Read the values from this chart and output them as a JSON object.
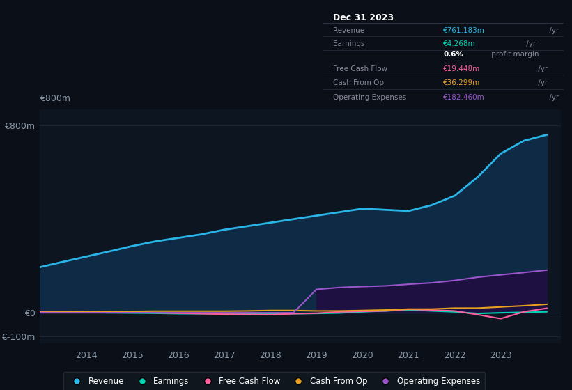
{
  "background_color": "#0b0f17",
  "plot_bg_color": "#0d1520",
  "grid_color": "#1a2535",
  "years": [
    2013.0,
    2013.5,
    2014.0,
    2014.5,
    2015.0,
    2015.5,
    2016.0,
    2016.5,
    2017.0,
    2017.5,
    2018.0,
    2018.5,
    2019.0,
    2019.5,
    2020.0,
    2020.5,
    2021.0,
    2021.5,
    2022.0,
    2022.5,
    2023.0,
    2023.5,
    2024.0
  ],
  "revenue": [
    195,
    218,
    240,
    262,
    285,
    305,
    320,
    335,
    355,
    370,
    385,
    400,
    415,
    430,
    445,
    440,
    435,
    460,
    500,
    580,
    680,
    735,
    761
  ],
  "earnings": [
    2,
    1,
    1,
    0,
    -1,
    -2,
    -4,
    -4,
    -4,
    -5,
    -5,
    -4,
    -3,
    -1,
    4,
    8,
    12,
    8,
    4,
    -3,
    0,
    2,
    4.268
  ],
  "free_cash_flow": [
    3,
    3,
    2,
    1,
    1,
    0,
    -2,
    -4,
    -6,
    -7,
    -8,
    -4,
    -2,
    4,
    6,
    8,
    15,
    12,
    8,
    -8,
    -25,
    4,
    19.448
  ],
  "cash_from_op": [
    2,
    3,
    4,
    5,
    6,
    7,
    7,
    7,
    7,
    8,
    10,
    10,
    8,
    8,
    10,
    12,
    16,
    16,
    20,
    20,
    25,
    30,
    36.299
  ],
  "operating_expenses": [
    0,
    0,
    0,
    0,
    0,
    0,
    0,
    0,
    0,
    0,
    0,
    0,
    100,
    108,
    112,
    115,
    122,
    128,
    138,
    152,
    162,
    172,
    182.46
  ],
  "revenue_color": "#2ab5e8",
  "earnings_color": "#00d4b4",
  "free_cash_flow_color": "#ff5f9e",
  "cash_from_op_color": "#e8a020",
  "operating_expenses_color": "#9b55cc",
  "revenue_fill": "#0f2a45",
  "operating_expenses_fill": "#1e1040",
  "ylim": [
    -130,
    870
  ],
  "yticks": [
    -100,
    0,
    800
  ],
  "ytick_labels": [
    "€-100m",
    "€0",
    "€800m"
  ],
  "xlim": [
    2013.0,
    2024.3
  ],
  "xtick_years": [
    2014,
    2015,
    2016,
    2017,
    2018,
    2019,
    2020,
    2021,
    2022,
    2023
  ],
  "legend_entries": [
    "Revenue",
    "Earnings",
    "Free Cash Flow",
    "Cash From Op",
    "Operating Expenses"
  ],
  "legend_colors": [
    "#2ab5e8",
    "#00d4b4",
    "#ff5f9e",
    "#e8a020",
    "#9b55cc"
  ],
  "info_box": {
    "title": "Dec 31 2023",
    "rows": [
      {
        "label": "Revenue",
        "value": "€761.183m",
        "unit": " /yr",
        "value_color": "#2ab5e8"
      },
      {
        "label": "Earnings",
        "value": "€4.268m",
        "unit": " /yr",
        "value_color": "#00d4b4"
      },
      {
        "label": "",
        "value": "0.6%",
        "unit": " profit margin",
        "value_color": "#ffffff",
        "bold": true
      },
      {
        "label": "Free Cash Flow",
        "value": "€19.448m",
        "unit": " /yr",
        "value_color": "#ff5f9e"
      },
      {
        "label": "Cash From Op",
        "value": "€36.299m",
        "unit": " /yr",
        "value_color": "#e8a020"
      },
      {
        "label": "Operating Expenses",
        "value": "€182.460m",
        "unit": " /yr",
        "value_color": "#9b55cc"
      }
    ]
  }
}
